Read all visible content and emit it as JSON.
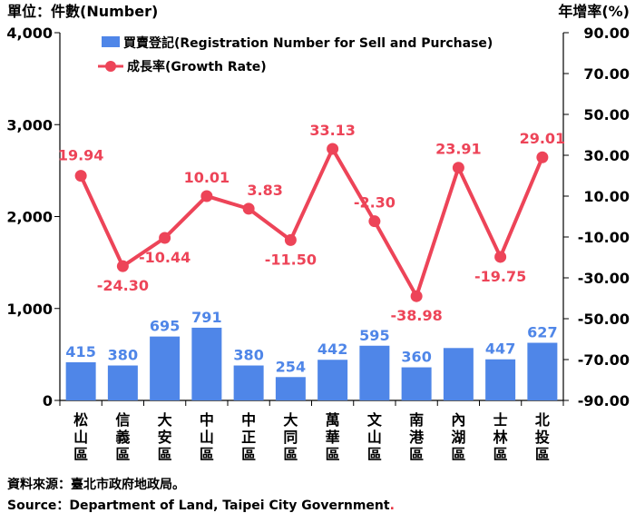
{
  "chart_data": {
    "type": "bar+line",
    "left_unit": "單位：件數(Number)",
    "right_unit": "年增率(%)",
    "categories": [
      [
        "松",
        "山",
        "區"
      ],
      [
        "信",
        "義",
        "區"
      ],
      [
        "大",
        "安",
        "區"
      ],
      [
        "中",
        "山",
        "區"
      ],
      [
        "中",
        "正",
        "區"
      ],
      [
        "大",
        "同",
        "區"
      ],
      [
        "萬",
        "華",
        "區"
      ],
      [
        "文",
        "山",
        "區"
      ],
      [
        "南",
        "港",
        "區"
      ],
      [
        "內",
        "湖",
        "區"
      ],
      [
        "士",
        "林",
        "區"
      ],
      [
        "北",
        "投",
        "區"
      ]
    ],
    "bar_series": {
      "name": "買賣登記(Registration Number for Sell and Purchase)",
      "values": [
        415,
        380,
        695,
        791,
        380,
        254,
        442,
        595,
        360,
        570,
        447,
        627
      ],
      "labels": [
        "415",
        "380",
        "695",
        "791",
        "380",
        "254",
        "442",
        "595",
        "360",
        "",
        "447",
        "627"
      ],
      "color": "#4f86e8"
    },
    "line_series": {
      "name": "成長率(Growth Rate)",
      "values": [
        19.94,
        -24.3,
        -10.44,
        10.01,
        3.83,
        -11.5,
        33.13,
        -2.3,
        -38.98,
        23.91,
        -19.75,
        29.01
      ],
      "labels": [
        "19.94",
        "-24.30",
        "-10.44",
        "10.01",
        "3.83",
        "-11.50",
        "33.13",
        "-2.30",
        "-38.98",
        "23.91",
        "-19.75",
        "29.01"
      ],
      "color": "#ed4458"
    },
    "left_axis": {
      "min": 0,
      "max": 4000,
      "ticks": [
        0,
        1000,
        2000,
        3000,
        4000
      ],
      "tick_labels": [
        "0",
        "1,000",
        "2,000",
        "3,000",
        "4,000"
      ]
    },
    "right_axis": {
      "min": -90,
      "max": 90,
      "ticks": [
        -90,
        -70,
        -50,
        -30,
        -10,
        10,
        30,
        50,
        70,
        90
      ],
      "tick_labels": [
        "-90.00",
        "-70.00",
        "-50.00",
        "-30.00",
        "-10.00",
        "10.00",
        "30.00",
        "50.00",
        "70.00",
        "90.00"
      ]
    },
    "grid": false,
    "legend_position": "top"
  },
  "source": {
    "zh": "資料來源：臺北市政府地政局。",
    "en": "Source：Department of Land, Taipei City Government",
    "en_end": "."
  }
}
